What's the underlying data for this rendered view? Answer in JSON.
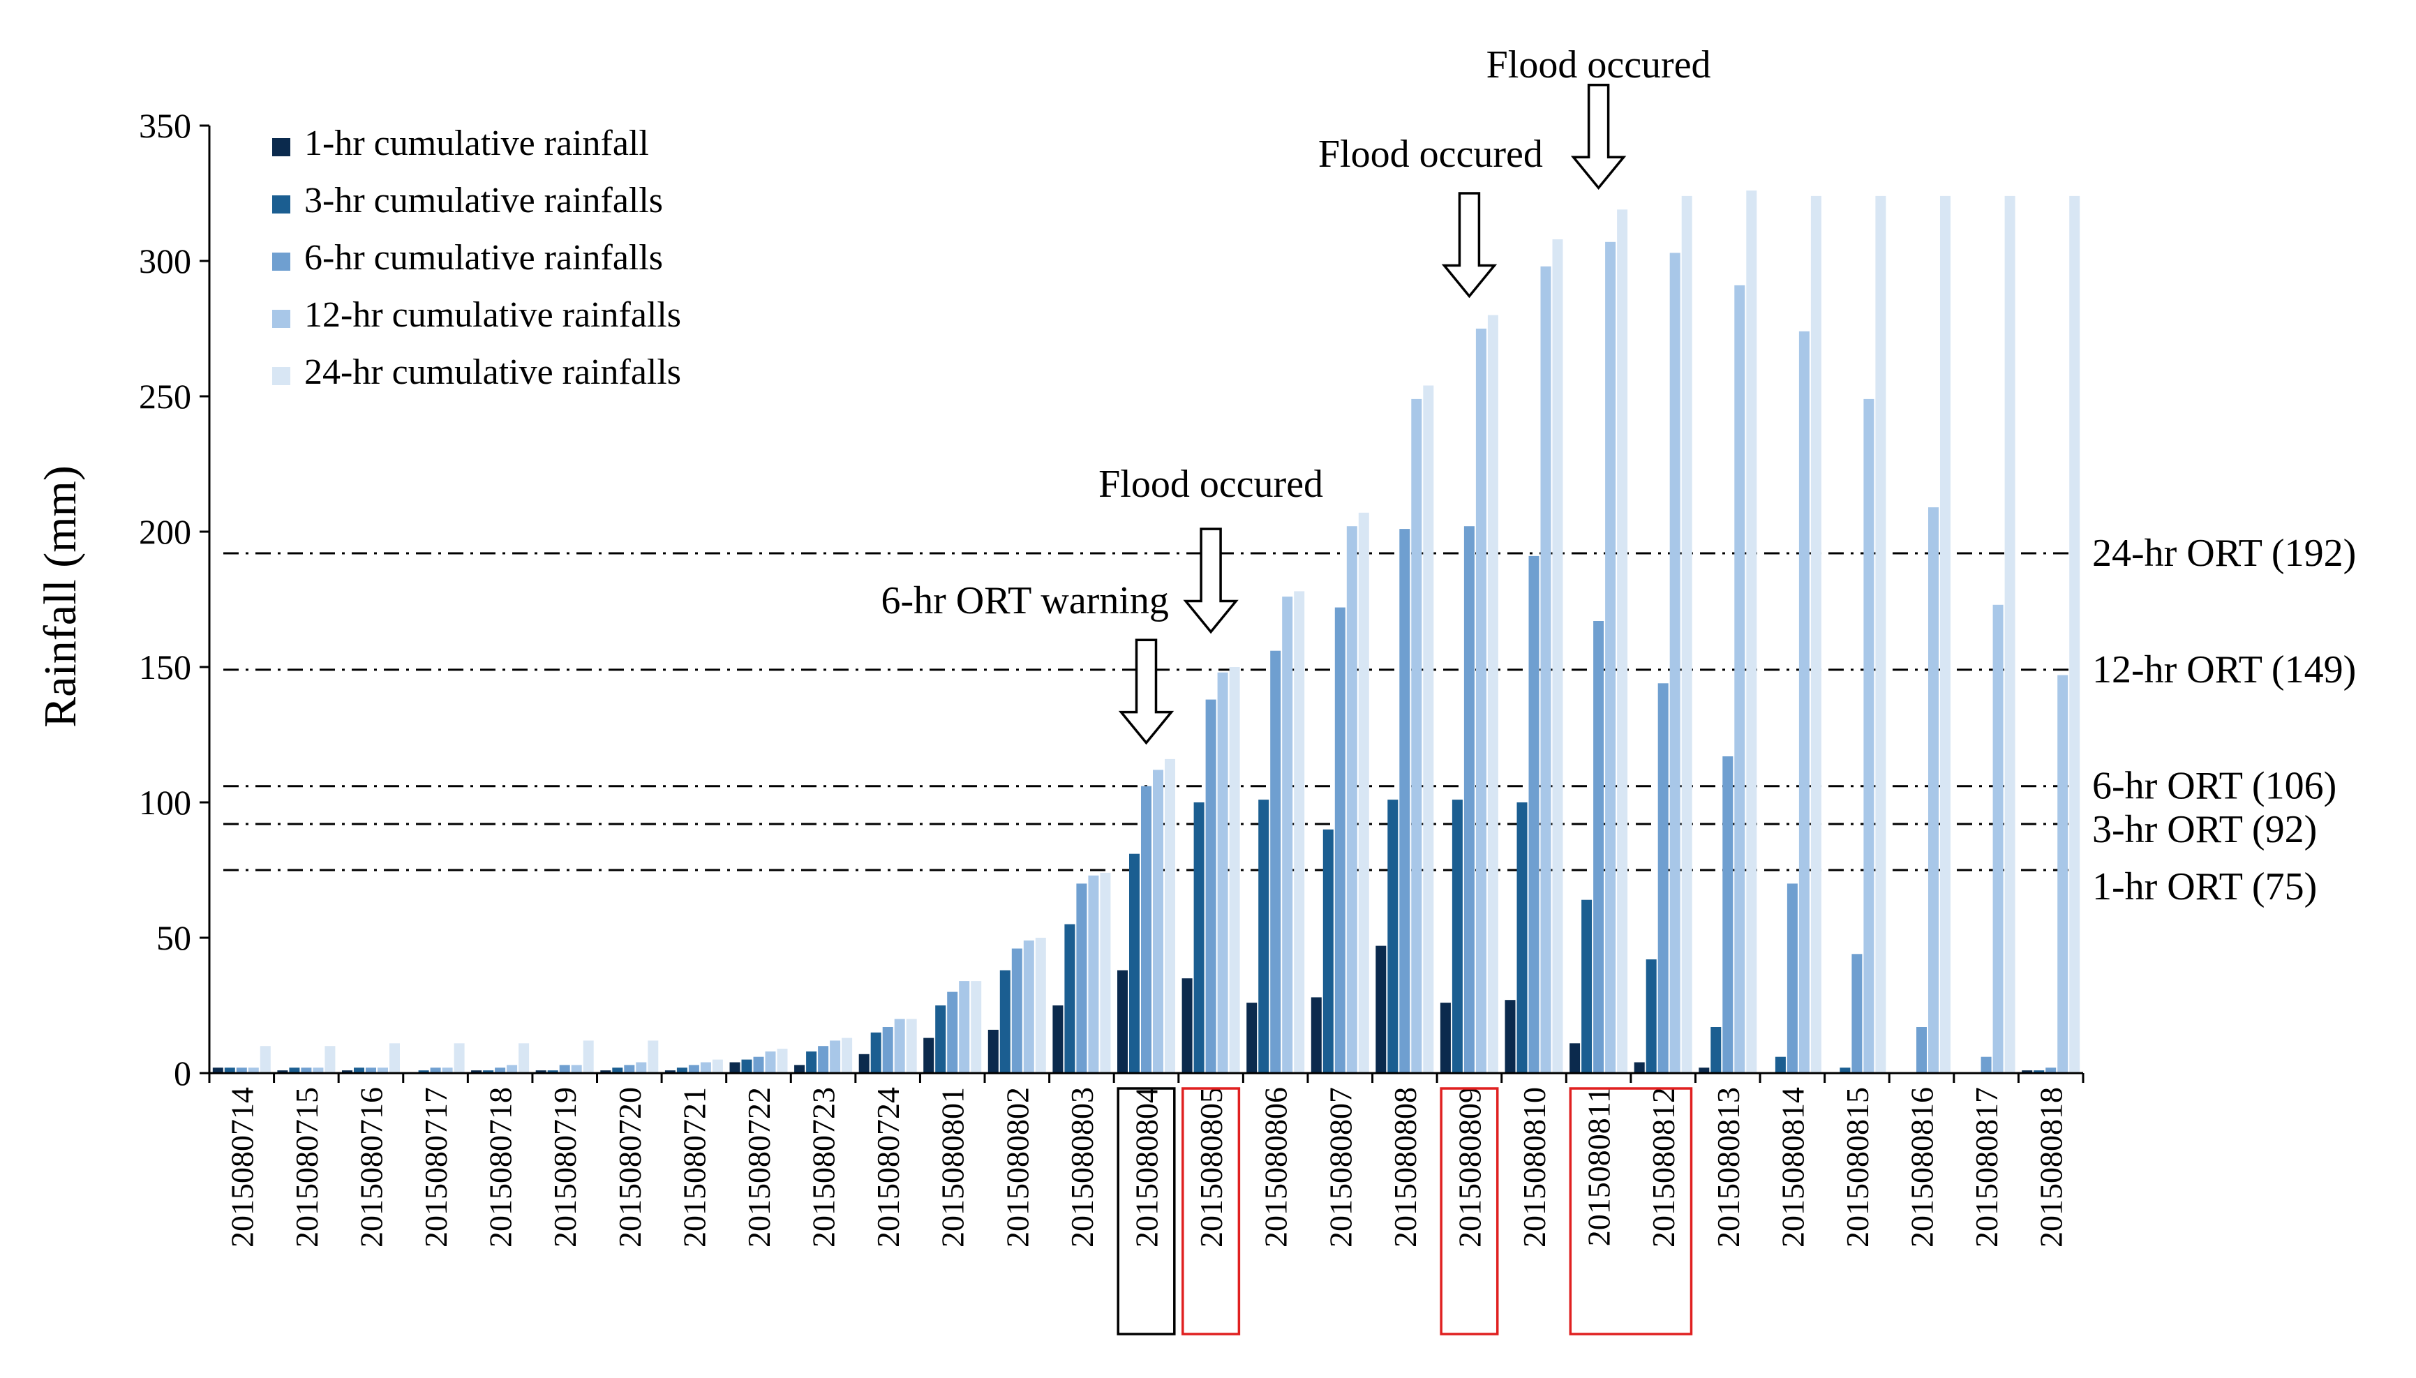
{
  "chart_data": {
    "type": "bar",
    "title": "",
    "xlabel": "",
    "ylabel": "Rainfall (mm)",
    "ylim": [
      0,
      350
    ],
    "yticks": [
      "0",
      "50",
      "100",
      "150",
      "200",
      "250",
      "300",
      "350"
    ],
    "grid": false,
    "legend_position": "top-left",
    "colors": [
      "#0b2a4d",
      "#1b5e91",
      "#6f9fd0",
      "#a8c7e8",
      "#d8e6f4"
    ],
    "categories": [
      "2015080714",
      "2015080715",
      "2015080716",
      "2015080717",
      "2015080718",
      "2015080719",
      "2015080720",
      "2015080721",
      "2015080722",
      "2015080723",
      "2015080724",
      "2015080801",
      "2015080802",
      "2015080803",
      "2015080804",
      "2015080805",
      "2015080806",
      "2015080807",
      "2015080808",
      "2015080809",
      "2015080810",
      "2015080811",
      "2015080812",
      "2015080813",
      "2015080814",
      "2015080815",
      "2015080816",
      "2015080817",
      "2015080818"
    ],
    "series": [
      {
        "name": "1-hr cumulative rainfall",
        "values": [
          2,
          1,
          1,
          0,
          1,
          1,
          1,
          1,
          4,
          3,
          7,
          13,
          16,
          25,
          38,
          35,
          26,
          28,
          47,
          26,
          27,
          11,
          4,
          2,
          0,
          0,
          0,
          0,
          1
        ]
      },
      {
        "name": "3-hr cumulative rainfalls",
        "values": [
          2,
          2,
          2,
          1,
          1,
          1,
          2,
          2,
          5,
          8,
          15,
          25,
          38,
          55,
          81,
          100,
          101,
          90,
          101,
          101,
          100,
          64,
          42,
          17,
          6,
          2,
          0,
          0,
          1
        ]
      },
      {
        "name": "6-hr cumulative rainfalls",
        "values": [
          2,
          2,
          2,
          2,
          2,
          3,
          3,
          3,
          6,
          10,
          17,
          30,
          46,
          70,
          106,
          138,
          156,
          172,
          201,
          202,
          191,
          167,
          144,
          117,
          70,
          44,
          17,
          6,
          2
        ]
      },
      {
        "name": "12-hr cumulative rainfalls",
        "values": [
          2,
          2,
          2,
          2,
          3,
          3,
          4,
          4,
          8,
          12,
          20,
          34,
          49,
          73,
          112,
          148,
          176,
          202,
          249,
          275,
          298,
          307,
          303,
          291,
          274,
          249,
          209,
          173,
          147
        ]
      },
      {
        "name": "24-hr cumulative rainfalls",
        "values": [
          10,
          10,
          11,
          11,
          11,
          12,
          12,
          5,
          9,
          13,
          20,
          34,
          50,
          74,
          116,
          150,
          178,
          207,
          254,
          280,
          308,
          319,
          324,
          326,
          324,
          324,
          324,
          324,
          324
        ]
      }
    ],
    "thresholds": [
      {
        "label": "24-hr ORT (192)",
        "value": 192
      },
      {
        "label": "12-hr ORT (149)",
        "value": 149
      },
      {
        "label": "6-hr ORT (106)",
        "value": 106
      },
      {
        "label": "3-hr ORT (92)",
        "value": 92
      },
      {
        "label": "1-hr ORT (75)",
        "value": 75
      }
    ],
    "annotations": [
      {
        "text": "6-hr ORT warning",
        "category": "2015080804",
        "tip_value": 122,
        "arrow_len_value": 38,
        "label_value": 175,
        "label_anchor": "end",
        "label_offset_cat": 0.35
      },
      {
        "text": "Flood occured",
        "category": "2015080805",
        "tip_value": 163,
        "arrow_len_value": 38,
        "label_value": 218,
        "label_anchor": "middle",
        "label_offset_cat": 0
      },
      {
        "text": "Flood occured",
        "category": "2015080809",
        "tip_value": 287,
        "arrow_len_value": 38,
        "label_value": 340,
        "label_anchor": "middle",
        "label_offset_cat": -0.6
      },
      {
        "text": "Flood occured",
        "category": "2015080811",
        "tip_value": 327,
        "arrow_len_value": 38,
        "label_value": 373,
        "label_anchor": "middle",
        "label_offset_cat": 0
      }
    ],
    "highlight_boxes": [
      {
        "categories": [
          "2015080804"
        ],
        "color": "#000000"
      },
      {
        "categories": [
          "2015080805"
        ],
        "color": "#e02020"
      },
      {
        "categories": [
          "2015080809"
        ],
        "color": "#e02020"
      },
      {
        "categories": [
          "2015080811",
          "2015080812"
        ],
        "color": "#e02020"
      }
    ]
  }
}
